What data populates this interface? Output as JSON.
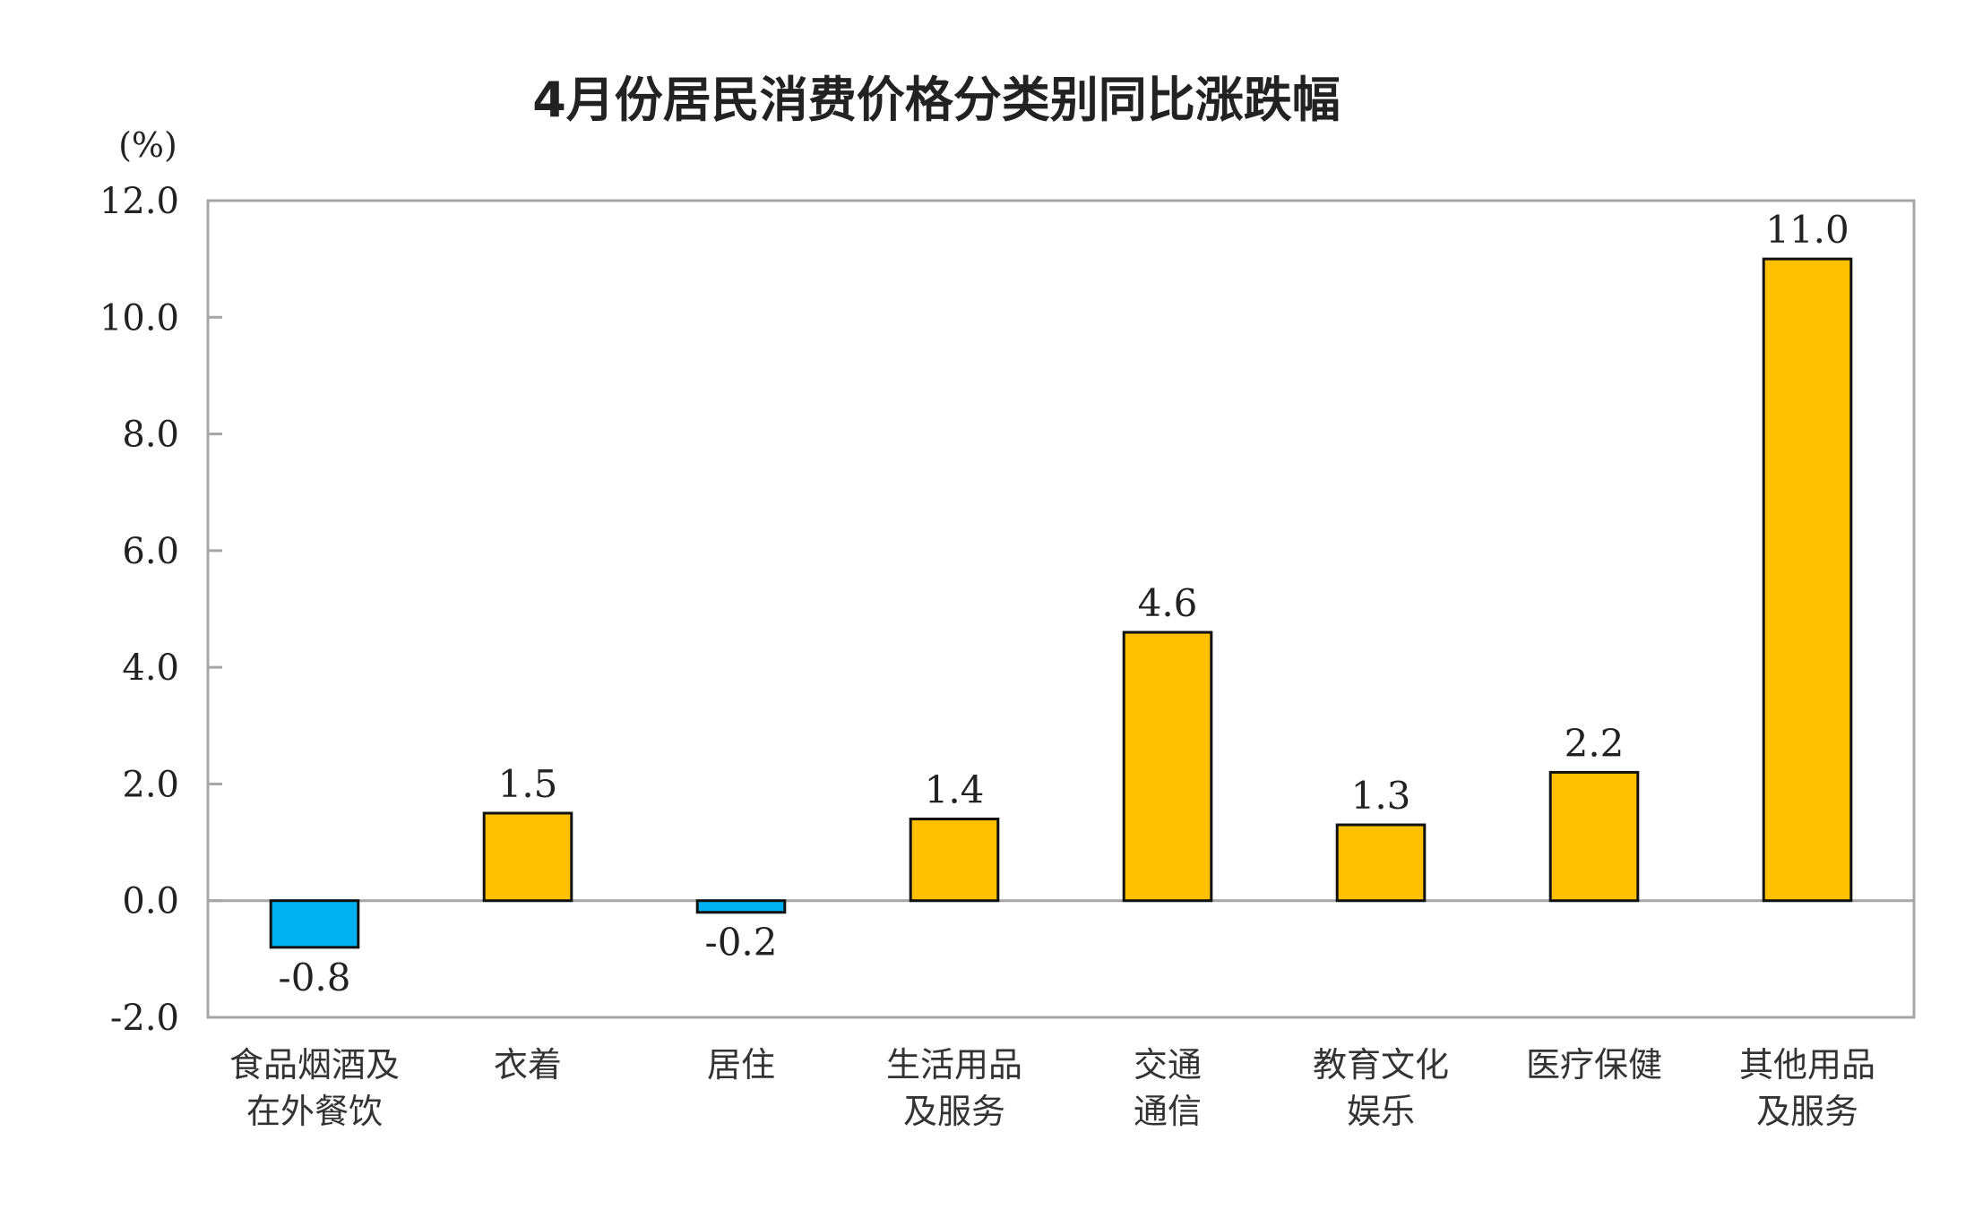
{
  "chart_data": {
    "type": "bar",
    "title": "4月份居民消费价格分类别同比涨跌幅",
    "ylabel": "(%)",
    "xlabel": "",
    "ylim": [
      -2.0,
      12.0
    ],
    "yticks": [
      "12.0",
      "10.0",
      "8.0",
      "6.0",
      "4.0",
      "2.0",
      "0.0",
      "-2.0"
    ],
    "categories": [
      [
        "食品烟酒及",
        "在外餐饮"
      ],
      [
        "衣着"
      ],
      [
        "居住"
      ],
      [
        "生活用品",
        "及服务"
      ],
      [
        "交通",
        "通信"
      ],
      [
        "教育文化",
        "娱乐"
      ],
      [
        "医疗保健"
      ],
      [
        "其他用品",
        "及服务"
      ]
    ],
    "values": [
      -0.8,
      1.5,
      -0.2,
      1.4,
      4.6,
      1.3,
      2.2,
      11.0
    ],
    "value_labels": [
      "-0.8",
      "1.5",
      "-0.2",
      "1.4",
      "4.6",
      "1.3",
      "2.2",
      "11.0"
    ],
    "grid": false,
    "legend": "none",
    "colors": {
      "positive": "#FFC000",
      "negative": "#00B0F0",
      "outline": "#111111",
      "frame": "#A6A6A6"
    }
  }
}
